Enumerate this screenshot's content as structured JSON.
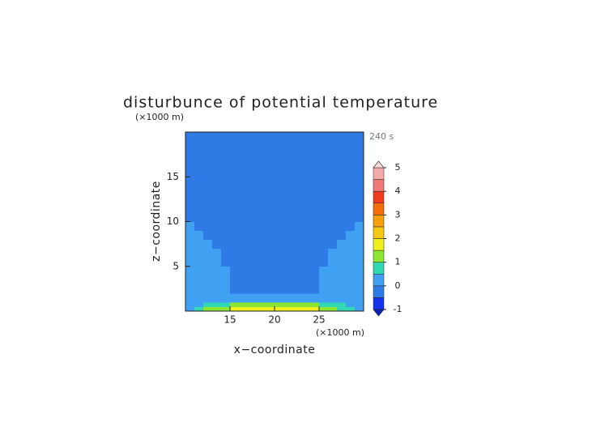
{
  "chart_data": {
    "type": "contour",
    "title": "disturbunce of potential temperature",
    "y_unit_label": "(×1000 m)",
    "x_unit_label": "(×1000 m)",
    "annotation": "240 s",
    "xlabel": "x−coordinate",
    "ylabel": "z−coordinate",
    "xlim": [
      10,
      30
    ],
    "ylim": [
      0,
      20
    ],
    "xticks": [
      15,
      20,
      25
    ],
    "yticks": [
      5,
      10,
      15
    ],
    "x_edges": [
      10,
      11,
      12,
      13,
      14,
      15,
      16,
      17,
      18,
      19,
      20,
      21,
      22,
      23,
      24,
      25,
      26,
      27,
      28,
      29,
      30
    ],
    "z_edges": [
      0,
      0.5,
      1,
      1.5,
      2,
      3,
      4,
      5,
      6,
      7,
      8,
      9,
      10,
      11,
      12,
      13,
      14,
      15,
      16,
      17,
      18,
      19,
      20
    ],
    "values": [
      [
        0.2,
        0.7,
        1.2,
        1.2,
        1.2,
        1.7,
        1.7,
        1.7,
        1.7,
        1.7,
        1.7,
        1.7,
        1.7,
        1.7,
        1.7,
        1.2,
        1.2,
        0.7,
        0.7,
        0.2
      ],
      [
        0.2,
        0.2,
        0.7,
        0.7,
        0.7,
        1.2,
        1.2,
        1.2,
        1.2,
        1.2,
        1.2,
        1.2,
        1.2,
        1.2,
        1.2,
        0.7,
        0.7,
        0.7,
        0.2,
        0.2
      ],
      [
        0.2,
        0.2,
        0.2,
        0.2,
        0.2,
        0.2,
        0.2,
        0.2,
        0.2,
        0.2,
        0.2,
        0.2,
        0.2,
        0.2,
        0.2,
        0.2,
        0.2,
        0.2,
        0.2,
        0.2
      ],
      [
        0.2,
        0.2,
        0.2,
        0.2,
        0.2,
        0.2,
        0.2,
        0.2,
        0.2,
        0.2,
        0.2,
        0.2,
        0.2,
        0.2,
        0.2,
        0.2,
        0.2,
        0.2,
        0.2,
        0.2
      ],
      [
        0.2,
        0.2,
        0.2,
        0.2,
        0.2,
        -0.2,
        -0.2,
        -0.2,
        -0.2,
        -0.2,
        -0.2,
        -0.2,
        -0.2,
        -0.2,
        -0.2,
        0.2,
        0.2,
        0.2,
        0.2,
        0.2
      ],
      [
        0.2,
        0.2,
        0.2,
        0.2,
        0.2,
        -0.2,
        -0.2,
        -0.2,
        -0.2,
        -0.2,
        -0.2,
        -0.2,
        -0.2,
        -0.2,
        -0.2,
        0.2,
        0.2,
        0.2,
        0.2,
        0.2
      ],
      [
        0.2,
        0.2,
        0.2,
        0.2,
        0.2,
        -0.2,
        -0.2,
        -0.2,
        -0.2,
        -0.2,
        -0.2,
        -0.2,
        -0.2,
        -0.2,
        -0.2,
        0.2,
        0.2,
        0.2,
        0.2,
        0.2
      ],
      [
        0.2,
        0.2,
        0.2,
        0.2,
        -0.2,
        -0.2,
        -0.2,
        -0.2,
        -0.2,
        -0.2,
        -0.2,
        -0.2,
        -0.2,
        -0.2,
        -0.2,
        -0.2,
        0.2,
        0.2,
        0.2,
        0.2
      ],
      [
        0.2,
        0.2,
        0.2,
        0.2,
        -0.2,
        -0.2,
        -0.2,
        -0.2,
        -0.2,
        -0.2,
        -0.2,
        -0.2,
        -0.2,
        -0.2,
        -0.2,
        -0.2,
        0.2,
        0.2,
        0.2,
        0.2
      ],
      [
        0.2,
        0.2,
        0.2,
        -0.2,
        -0.2,
        -0.2,
        -0.2,
        -0.2,
        -0.2,
        -0.2,
        -0.2,
        -0.2,
        -0.2,
        -0.2,
        -0.2,
        -0.2,
        -0.2,
        0.2,
        0.2,
        0.2
      ],
      [
        0.2,
        0.2,
        -0.2,
        -0.2,
        -0.2,
        -0.2,
        -0.2,
        -0.2,
        -0.2,
        -0.2,
        -0.2,
        -0.2,
        -0.2,
        -0.2,
        -0.2,
        -0.2,
        -0.2,
        -0.2,
        0.2,
        0.2
      ],
      [
        0.2,
        -0.2,
        -0.2,
        -0.2,
        -0.2,
        -0.2,
        -0.2,
        -0.2,
        -0.2,
        -0.2,
        -0.2,
        -0.2,
        -0.2,
        -0.2,
        -0.2,
        -0.2,
        -0.2,
        -0.2,
        -0.2,
        0.2
      ],
      [
        -0.2,
        -0.2,
        -0.2,
        -0.2,
        -0.2,
        -0.2,
        -0.2,
        -0.2,
        -0.2,
        -0.2,
        -0.2,
        -0.2,
        -0.2,
        -0.2,
        -0.2,
        -0.2,
        -0.2,
        -0.2,
        -0.2,
        -0.2
      ],
      [
        -0.2,
        -0.2,
        -0.2,
        -0.2,
        -0.2,
        -0.2,
        -0.2,
        -0.2,
        -0.2,
        -0.2,
        -0.2,
        -0.2,
        -0.2,
        -0.2,
        -0.2,
        -0.2,
        -0.2,
        -0.2,
        -0.2,
        -0.2
      ],
      [
        -0.2,
        -0.2,
        -0.2,
        -0.2,
        -0.2,
        -0.2,
        -0.2,
        -0.2,
        -0.2,
        -0.2,
        -0.2,
        -0.2,
        -0.2,
        -0.2,
        -0.2,
        -0.2,
        -0.2,
        -0.2,
        -0.2,
        -0.2
      ],
      [
        -0.2,
        -0.2,
        -0.2,
        -0.2,
        -0.2,
        -0.2,
        -0.2,
        -0.2,
        -0.2,
        -0.2,
        -0.2,
        -0.2,
        -0.2,
        -0.2,
        -0.2,
        -0.2,
        -0.2,
        -0.2,
        -0.2,
        -0.2
      ],
      [
        -0.2,
        -0.2,
        -0.2,
        -0.2,
        -0.2,
        -0.2,
        -0.2,
        -0.2,
        -0.2,
        -0.2,
        -0.2,
        -0.2,
        -0.2,
        -0.2,
        -0.2,
        -0.2,
        -0.2,
        -0.2,
        -0.2,
        -0.2
      ],
      [
        -0.2,
        -0.2,
        -0.2,
        -0.2,
        -0.2,
        -0.2,
        -0.2,
        -0.2,
        -0.2,
        -0.2,
        -0.2,
        -0.2,
        -0.2,
        -0.2,
        -0.2,
        -0.2,
        -0.2,
        -0.2,
        -0.2,
        -0.2
      ],
      [
        -0.2,
        -0.2,
        -0.2,
        -0.2,
        -0.2,
        -0.2,
        -0.2,
        -0.2,
        -0.2,
        -0.2,
        -0.2,
        -0.2,
        -0.2,
        -0.2,
        -0.2,
        -0.2,
        -0.2,
        -0.2,
        -0.2,
        -0.2
      ],
      [
        -0.2,
        -0.2,
        -0.2,
        -0.2,
        -0.2,
        -0.2,
        -0.2,
        -0.2,
        -0.2,
        -0.2,
        -0.2,
        -0.2,
        -0.2,
        -0.2,
        -0.2,
        -0.2,
        -0.2,
        -0.2,
        -0.2,
        -0.2
      ],
      [
        -0.2,
        -0.2,
        -0.2,
        -0.2,
        -0.2,
        -0.2,
        -0.2,
        -0.2,
        -0.2,
        -0.2,
        -0.2,
        -0.2,
        -0.2,
        -0.2,
        -0.2,
        -0.2,
        -0.2,
        -0.2,
        -0.2,
        -0.2
      ],
      [
        -0.2,
        -0.2,
        -0.2,
        -0.2,
        -0.2,
        -0.2,
        -0.2,
        -0.2,
        -0.2,
        -0.2,
        -0.2,
        -0.2,
        -0.2,
        -0.2,
        -0.2,
        -0.2,
        -0.2,
        -0.2,
        -0.2,
        -0.2
      ]
    ],
    "levels": [
      -1,
      -0.5,
      0,
      0.5,
      1,
      1.5,
      2,
      2.5,
      3,
      3.5,
      4,
      4.5,
      5
    ],
    "colors": [
      "#1432f0",
      "#2e7be6",
      "#40a0f2",
      "#32d8b4",
      "#8ce632",
      "#f0f01e",
      "#f5c814",
      "#f5a00a",
      "#f56e0a",
      "#f03c1e",
      "#f07878",
      "#f5aaaa"
    ],
    "over_color": "#f8dcdc",
    "under_color": "#0a1eb4",
    "colorbar_ticks": [
      -1,
      0,
      1,
      2,
      3,
      4,
      5
    ]
  }
}
